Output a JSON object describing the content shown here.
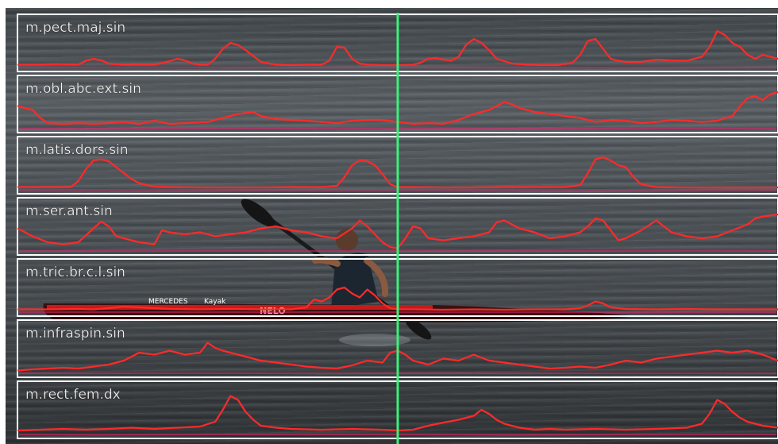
{
  "colors": {
    "emg_trace": "#ff2a2a",
    "baseline": "#e0246e",
    "cursor": "#3cf07a",
    "panel_border": "#ffffff",
    "boat_hull": "#3a1010",
    "hull_stripe": "#c81a1a"
  },
  "boat_text": [
    "MERCEDES",
    "Kayak",
    "NELO"
  ],
  "chart_data": {
    "type": "line",
    "title": "",
    "xlabel": "",
    "ylabel": "",
    "xlim": [
      0,
      100
    ],
    "ylim": [
      0,
      1
    ],
    "grid": false,
    "cursor_x": 50,
    "series": [
      {
        "name": "m.pect.maj.sin",
        "x": [
          0,
          3,
          5,
          8,
          9,
          10,
          11,
          12,
          13,
          14,
          15,
          18,
          20,
          21,
          22,
          23,
          24,
          25,
          26,
          27,
          28,
          29,
          30,
          32,
          34,
          36,
          38,
          40,
          41,
          42,
          43,
          44,
          45,
          46,
          48,
          50,
          52,
          53,
          54,
          55,
          56,
          57,
          58,
          59,
          60,
          61,
          62,
          63,
          65,
          67,
          69,
          71,
          73,
          74,
          75,
          76,
          77,
          78,
          79,
          80,
          82,
          84,
          86,
          88,
          90,
          91,
          92,
          93,
          94,
          95,
          96,
          97,
          98,
          99,
          100
        ],
        "y": [
          0.05,
          0.05,
          0.06,
          0.05,
          0.15,
          0.2,
          0.16,
          0.08,
          0.06,
          0.05,
          0.05,
          0.05,
          0.14,
          0.2,
          0.16,
          0.08,
          0.05,
          0.05,
          0.2,
          0.45,
          0.6,
          0.55,
          0.42,
          0.12,
          0.05,
          0.04,
          0.05,
          0.05,
          0.15,
          0.5,
          0.48,
          0.2,
          0.08,
          0.05,
          0.04,
          0.04,
          0.05,
          0.1,
          0.2,
          0.22,
          0.18,
          0.15,
          0.25,
          0.55,
          0.7,
          0.6,
          0.42,
          0.2,
          0.08,
          0.05,
          0.04,
          0.04,
          0.1,
          0.3,
          0.65,
          0.7,
          0.45,
          0.2,
          0.15,
          0.12,
          0.12,
          0.18,
          0.16,
          0.15,
          0.25,
          0.5,
          0.9,
          0.8,
          0.6,
          0.5,
          0.3,
          0.2,
          0.3,
          0.25,
          0.2
        ]
      },
      {
        "name": "m.obl.abc.ext.sin",
        "x": [
          0,
          2,
          3,
          4,
          6,
          8,
          10,
          12,
          14,
          16,
          18,
          20,
          22,
          25,
          27,
          29,
          31,
          32,
          34,
          36,
          38,
          40,
          42,
          44,
          46,
          48,
          50,
          52,
          54,
          56,
          58,
          60,
          62,
          63,
          64,
          65,
          66,
          67,
          68,
          70,
          72,
          74,
          76,
          78,
          80,
          82,
          84,
          86,
          88,
          90,
          92,
          94,
          95,
          96,
          97,
          98,
          99,
          100
        ],
        "y": [
          0.55,
          0.45,
          0.25,
          0.12,
          0.1,
          0.12,
          0.1,
          0.12,
          0.15,
          0.1,
          0.18,
          0.1,
          0.12,
          0.15,
          0.25,
          0.35,
          0.4,
          0.3,
          0.22,
          0.2,
          0.18,
          0.15,
          0.12,
          0.18,
          0.2,
          0.2,
          0.15,
          0.1,
          0.12,
          0.1,
          0.2,
          0.35,
          0.45,
          0.55,
          0.65,
          0.6,
          0.5,
          0.45,
          0.4,
          0.35,
          0.3,
          0.25,
          0.15,
          0.2,
          0.18,
          0.12,
          0.15,
          0.2,
          0.18,
          0.15,
          0.18,
          0.3,
          0.55,
          0.75,
          0.8,
          0.7,
          0.85,
          0.9
        ]
      },
      {
        "name": "m.latis.dors.sin",
        "x": [
          0,
          4,
          7,
          8,
          9,
          10,
          11,
          12,
          13,
          14,
          15,
          16,
          17,
          18,
          20,
          24,
          28,
          32,
          36,
          40,
          42,
          43,
          44,
          45,
          46,
          47,
          48,
          49,
          50,
          52,
          56,
          60,
          64,
          68,
          72,
          74,
          75,
          76,
          77,
          78,
          79,
          80,
          81,
          82,
          84,
          88,
          92,
          96,
          100
        ],
        "y": [
          0.05,
          0.05,
          0.05,
          0.2,
          0.5,
          0.72,
          0.75,
          0.7,
          0.55,
          0.4,
          0.25,
          0.15,
          0.1,
          0.06,
          0.05,
          0.04,
          0.04,
          0.04,
          0.05,
          0.05,
          0.08,
          0.3,
          0.6,
          0.72,
          0.7,
          0.6,
          0.38,
          0.12,
          0.05,
          0.05,
          0.04,
          0.04,
          0.05,
          0.05,
          0.05,
          0.1,
          0.4,
          0.75,
          0.8,
          0.72,
          0.6,
          0.55,
          0.3,
          0.12,
          0.05,
          0.04,
          0.04,
          0.04,
          0.04
        ]
      },
      {
        "name": "m.ser.ant.sin",
        "x": [
          0,
          2,
          4,
          6,
          8,
          10,
          11,
          12,
          13,
          14,
          16,
          18,
          19,
          20,
          22,
          24,
          26,
          28,
          30,
          32,
          34,
          36,
          38,
          40,
          42,
          44,
          45,
          46,
          48,
          49,
          50,
          51,
          52,
          53,
          54,
          56,
          58,
          60,
          62,
          63,
          64,
          66,
          68,
          70,
          72,
          74,
          75,
          76,
          77,
          78,
          79,
          80,
          82,
          84,
          85,
          86,
          88,
          90,
          92,
          94,
          96,
          97,
          98,
          100
        ],
        "y": [
          0.55,
          0.35,
          0.2,
          0.15,
          0.2,
          0.55,
          0.72,
          0.6,
          0.35,
          0.3,
          0.2,
          0.15,
          0.5,
          0.45,
          0.4,
          0.45,
          0.35,
          0.4,
          0.45,
          0.55,
          0.6,
          0.5,
          0.45,
          0.35,
          0.3,
          0.55,
          0.75,
          0.6,
          0.2,
          0.08,
          0.05,
          0.3,
          0.6,
          0.55,
          0.3,
          0.25,
          0.3,
          0.35,
          0.45,
          0.7,
          0.75,
          0.55,
          0.45,
          0.3,
          0.35,
          0.45,
          0.6,
          0.8,
          0.75,
          0.5,
          0.25,
          0.3,
          0.5,
          0.75,
          0.6,
          0.45,
          0.35,
          0.3,
          0.35,
          0.5,
          0.65,
          0.8,
          0.85,
          0.9
        ]
      },
      {
        "name": "m.tric.br.c.l.sin",
        "x": [
          0,
          4,
          8,
          10,
          12,
          14,
          16,
          18,
          20,
          24,
          28,
          32,
          36,
          38,
          39,
          40,
          41,
          42,
          43,
          44,
          45,
          46,
          47,
          48,
          49,
          50,
          52,
          56,
          60,
          64,
          68,
          72,
          74,
          75,
          76,
          77,
          78,
          80,
          84,
          88,
          92,
          96,
          100
        ],
        "y": [
          0.05,
          0.05,
          0.06,
          0.05,
          0.08,
          0.12,
          0.1,
          0.08,
          0.06,
          0.05,
          0.06,
          0.05,
          0.05,
          0.1,
          0.3,
          0.25,
          0.35,
          0.55,
          0.6,
          0.45,
          0.35,
          0.55,
          0.4,
          0.2,
          0.08,
          0.05,
          0.05,
          0.04,
          0.05,
          0.04,
          0.05,
          0.05,
          0.08,
          0.15,
          0.25,
          0.2,
          0.1,
          0.06,
          0.05,
          0.06,
          0.05,
          0.05,
          0.05
        ]
      },
      {
        "name": "m.infraspin.sin",
        "x": [
          0,
          2,
          4,
          6,
          8,
          10,
          12,
          14,
          16,
          18,
          20,
          22,
          24,
          25,
          26,
          27,
          28,
          30,
          32,
          34,
          36,
          38,
          40,
          42,
          44,
          46,
          48,
          49,
          50,
          51,
          52,
          54,
          56,
          58,
          60,
          62,
          64,
          66,
          68,
          70,
          72,
          74,
          76,
          78,
          80,
          82,
          84,
          86,
          88,
          90,
          92,
          94,
          96,
          98,
          100
        ],
        "y": [
          0.05,
          0.08,
          0.1,
          0.12,
          0.1,
          0.15,
          0.2,
          0.3,
          0.5,
          0.45,
          0.55,
          0.45,
          0.5,
          0.75,
          0.62,
          0.55,
          0.5,
          0.4,
          0.3,
          0.25,
          0.2,
          0.15,
          0.12,
          0.1,
          0.18,
          0.3,
          0.25,
          0.5,
          0.55,
          0.45,
          0.3,
          0.2,
          0.35,
          0.3,
          0.45,
          0.3,
          0.25,
          0.2,
          0.15,
          0.1,
          0.12,
          0.15,
          0.12,
          0.2,
          0.3,
          0.25,
          0.35,
          0.4,
          0.45,
          0.5,
          0.55,
          0.5,
          0.55,
          0.45,
          0.3
        ]
      },
      {
        "name": "m.rect.fem.dx",
        "x": [
          0,
          3,
          6,
          9,
          12,
          15,
          18,
          21,
          24,
          26,
          27,
          28,
          29,
          30,
          31,
          32,
          34,
          36,
          40,
          44,
          48,
          50,
          52,
          54,
          56,
          58,
          60,
          61,
          62,
          63,
          64,
          66,
          68,
          70,
          72,
          76,
          80,
          84,
          88,
          90,
          91,
          92,
          93,
          94,
          95,
          96,
          98,
          100
        ],
        "y": [
          0.08,
          0.1,
          0.12,
          0.1,
          0.12,
          0.15,
          0.12,
          0.15,
          0.18,
          0.3,
          0.6,
          0.95,
          0.85,
          0.55,
          0.35,
          0.2,
          0.15,
          0.12,
          0.1,
          0.12,
          0.1,
          0.08,
          0.1,
          0.2,
          0.28,
          0.35,
          0.45,
          0.6,
          0.5,
          0.35,
          0.25,
          0.15,
          0.1,
          0.12,
          0.1,
          0.12,
          0.1,
          0.12,
          0.15,
          0.25,
          0.5,
          0.85,
          0.75,
          0.55,
          0.4,
          0.3,
          0.2,
          0.15
        ]
      }
    ]
  }
}
